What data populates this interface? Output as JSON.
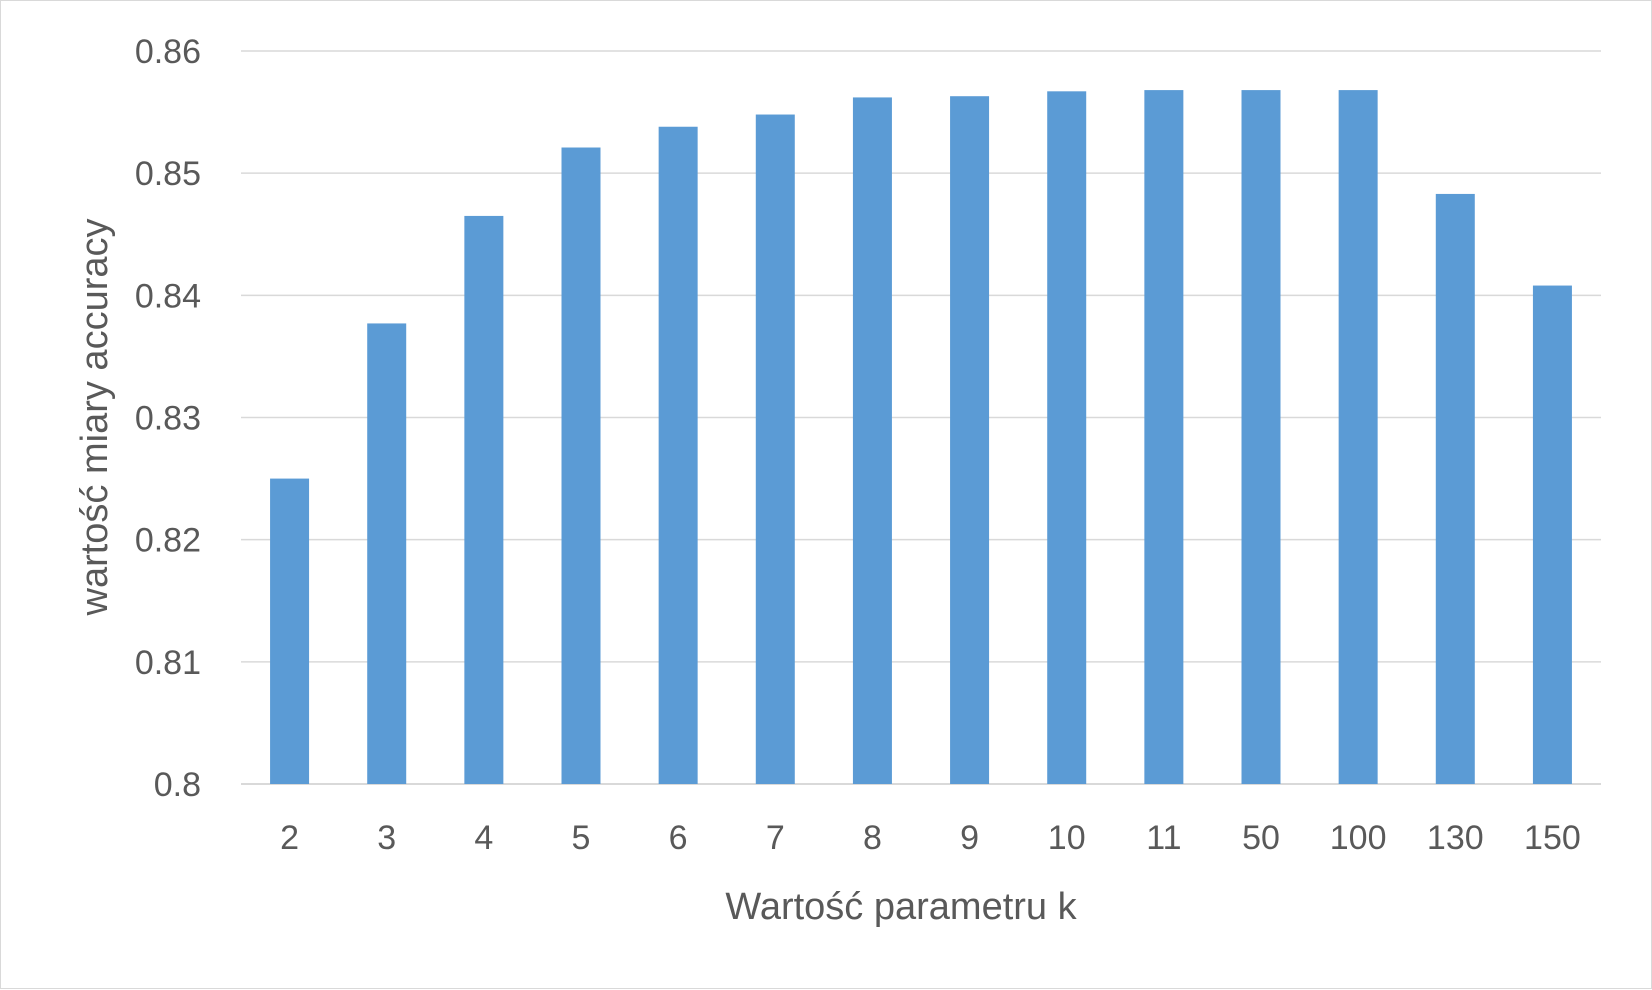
{
  "chart_data": {
    "type": "bar",
    "categories": [
      "2",
      "3",
      "4",
      "5",
      "6",
      "7",
      "8",
      "9",
      "10",
      "11",
      "50",
      "100",
      "130",
      "150"
    ],
    "values": [
      0.825,
      0.8377,
      0.8465,
      0.8521,
      0.8538,
      0.8548,
      0.8562,
      0.8563,
      0.8567,
      0.8568,
      0.8568,
      0.8568,
      0.8483,
      0.8408
    ],
    "xlabel": "Wartość parametru k",
    "ylabel": "wartość miary accuracy",
    "ylim": [
      0.8,
      0.86
    ],
    "yticks": [
      "0.8",
      "0.81",
      "0.82",
      "0.83",
      "0.84",
      "0.85",
      "0.86"
    ],
    "grid": true,
    "bar_color": "#5b9bd5",
    "grid_color": "#d9d9d9",
    "text_color": "#595959"
  }
}
